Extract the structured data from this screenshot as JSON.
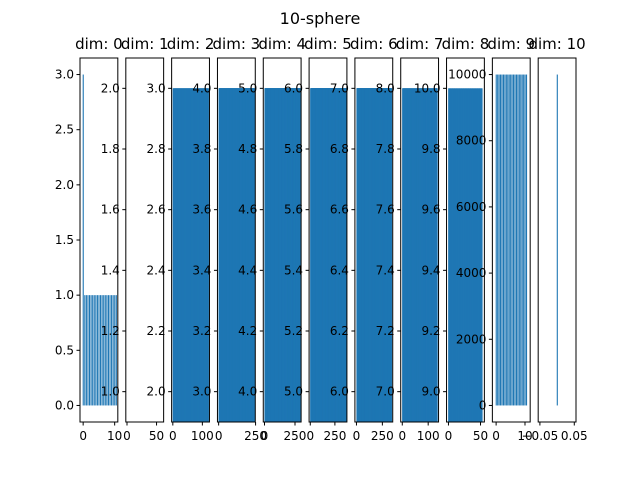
{
  "chart_data": {
    "type": "bar",
    "title": "10-sphere",
    "bar_color": "#1f77b4",
    "panels": [
      {
        "title": "dim: 0",
        "xlim": [
          -1,
          11
        ],
        "xticks": [
          0,
          10
        ],
        "xticklabels": [
          "0",
          "10"
        ],
        "ylim": [
          -0.15,
          3.15
        ],
        "yticks": [
          0,
          0.5,
          1.0,
          1.5,
          2.0,
          2.5,
          3.0
        ],
        "yticklabels": [
          "0.0",
          "0.5",
          "1.0",
          "1.5",
          "2.0",
          "2.5",
          "3.0"
        ],
        "bars": {
          "start": 0,
          "step": 0.5,
          "count": 22,
          "width": 0.3,
          "values": [
            3.0,
            1,
            1,
            1,
            1,
            1,
            1,
            1,
            1,
            1,
            1,
            1,
            1,
            1,
            1,
            1,
            1,
            1,
            1,
            1,
            1,
            1
          ]
        }
      },
      {
        "title": "dim: 1",
        "xlim": [
          -2,
          62
        ],
        "xticks": [
          0,
          50
        ],
        "xticklabels": [
          "0",
          "50"
        ],
        "ylim": [
          0.9,
          2.1
        ],
        "yticks": [
          1.0,
          1.2,
          1.4,
          1.6,
          1.8,
          2.0
        ],
        "yticklabels": [
          "1.0",
          "1.2",
          "1.4",
          "1.6",
          "1.8",
          "2.0"
        ],
        "bars": {
          "start": 0,
          "step": 1,
          "count": 0,
          "width": 0.8,
          "values": []
        }
      },
      {
        "title": "dim: 2",
        "xlim": [
          -4,
          124
        ],
        "xticks": [
          0,
          100
        ],
        "xticklabels": [
          "0",
          "100"
        ],
        "ylim": [
          1.9,
          3.1
        ],
        "yticks": [
          2.0,
          2.2,
          2.4,
          2.6,
          2.8,
          3.0
        ],
        "yticklabels": [
          "2.0",
          "2.2",
          "2.4",
          "2.6",
          "2.8",
          "3.0"
        ],
        "bars": {
          "start": 0,
          "step": 1,
          "count": 120,
          "width": 1.0,
          "constant": 3.0
        }
      },
      {
        "title": "dim: 3",
        "xlim": [
          -8,
          248
        ],
        "xticks": [
          0,
          250
        ],
        "xticklabels": [
          "0",
          "250"
        ],
        "ylim": [
          2.9,
          4.1
        ],
        "yticks": [
          3.0,
          3.2,
          3.4,
          3.6,
          3.8,
          4.0
        ],
        "yticklabels": [
          "3.0",
          "3.2",
          "3.4",
          "3.6",
          "3.8",
          "4.0"
        ],
        "bars": {
          "start": 0,
          "step": 1,
          "count": 240,
          "width": 1.0,
          "constant": 4.0
        }
      },
      {
        "title": "dim: 4",
        "xlim": [
          -10,
          300
        ],
        "xticks": [
          0,
          250
        ],
        "xticklabels": [
          "0",
          "250"
        ],
        "ylim": [
          3.9,
          5.1
        ],
        "yticks": [
          4.0,
          4.2,
          4.4,
          4.6,
          4.8,
          5.0
        ],
        "yticklabels": [
          "4.0",
          "4.2",
          "4.4",
          "4.6",
          "4.8",
          "5.0"
        ],
        "bars": {
          "start": 0,
          "step": 1,
          "count": 290,
          "width": 1.0,
          "constant": 5.0
        }
      },
      {
        "title": "dim: 5",
        "xlim": [
          -12,
          372
        ],
        "xticks": [
          0,
          250
        ],
        "xticklabels": [
          "0",
          "250"
        ],
        "ylim": [
          4.9,
          6.1
        ],
        "yticks": [
          5.0,
          5.2,
          5.4,
          5.6,
          5.8,
          6.0
        ],
        "yticklabels": [
          "5.0",
          "5.2",
          "5.4",
          "5.6",
          "5.8",
          "6.0"
        ],
        "bars": {
          "start": 0,
          "step": 1,
          "count": 360,
          "width": 1.0,
          "constant": 6.0
        }
      },
      {
        "title": "dim: 6",
        "xlim": [
          -15,
          350
        ],
        "xticks": [
          0,
          250
        ],
        "xticklabels": [
          "0",
          "250"
        ],
        "ylim": [
          5.9,
          7.1
        ],
        "yticks": [
          6.0,
          6.2,
          6.4,
          6.6,
          6.8,
          7.0
        ],
        "yticklabels": [
          "6.0",
          "6.2",
          "6.4",
          "6.6",
          "6.8",
          "7.0"
        ],
        "bars": {
          "start": 0,
          "step": 1,
          "count": 335,
          "width": 1.0,
          "constant": 7.0
        }
      },
      {
        "title": "dim: 7",
        "xlim": [
          -6,
          140
        ],
        "xticks": [
          0,
          100
        ],
        "xticklabels": [
          "0",
          "100"
        ],
        "ylim": [
          6.9,
          8.1
        ],
        "yticks": [
          7.0,
          7.2,
          7.4,
          7.6,
          7.8,
          8.0
        ],
        "yticklabels": [
          "7.0",
          "7.2",
          "7.4",
          "7.6",
          "7.8",
          "8.0"
        ],
        "bars": {
          "start": 0,
          "step": 1,
          "count": 134,
          "width": 1.0,
          "constant": 8.0
        }
      },
      {
        "title": "dim: 8",
        "xlim": [
          -3,
          56
        ],
        "xticks": [
          0,
          50
        ],
        "xticklabels": [
          "0",
          "50"
        ],
        "ylim": [
          8.9,
          10.1
        ],
        "yticks": [
          9.0,
          9.2,
          9.4,
          9.6,
          9.8,
          10.0
        ],
        "yticklabels": [
          "9.0",
          "9.2",
          "9.4",
          "9.6",
          "9.8",
          "10.0"
        ],
        "bars": {
          "start": 0,
          "step": 1,
          "count": 53,
          "width": 1.0,
          "constant": 10.0
        }
      },
      {
        "title": "dim: 9",
        "xlim": [
          -1.3,
          11.8
        ],
        "xticks": [
          0,
          10
        ],
        "xticklabels": [
          "0",
          "10"
        ],
        "ylim": [
          -500,
          10500
        ],
        "yticks": [
          0,
          2000,
          4000,
          6000,
          8000,
          10000
        ],
        "yticklabels": [
          "0",
          "2000",
          "4000",
          "6000",
          "8000",
          "10000"
        ],
        "bars": {
          "start": 0,
          "step": 0.5,
          "count": 22,
          "width": 0.3,
          "constant": 10000
        }
      },
      {
        "title": "dim: 10",
        "xlim": [
          -0.055,
          0.055
        ],
        "xticks": [
          -0.05,
          0.05
        ],
        "xticklabels": [
          "−0.05",
          "0.05"
        ],
        "ylim": [
          -0.15,
          3.15
        ],
        "yticks": [],
        "yticklabels": [],
        "bars": {
          "start": 0,
          "step": 1,
          "count": 1,
          "width": 0.002,
          "values": [
            3.0
          ]
        }
      }
    ]
  }
}
